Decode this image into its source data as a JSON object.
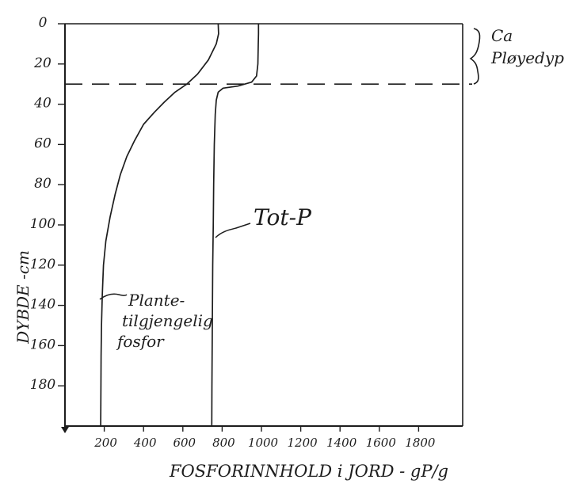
{
  "chart_data": {
    "type": "line",
    "title": "",
    "xlabel": "FOSFORINNHOLD i JORD - gP/g",
    "ylabel": "DYBDE -cm",
    "xlim": [
      0,
      2000
    ],
    "ylim": [
      0,
      200
    ],
    "y_inverted": true,
    "x_ticks": [
      "200",
      "400",
      "600",
      "800",
      "1000",
      "1200",
      "1400",
      "1600",
      "1800"
    ],
    "y_ticks": [
      "0",
      "20",
      "40",
      "60",
      "80",
      "100",
      "120",
      "140",
      "160",
      "180"
    ],
    "grid": false,
    "series": [
      {
        "name": "Plante-tilgjengelig fosfor",
        "x": [
          780,
          782,
          770,
          730,
          675,
          620,
          560,
          505,
          455,
          400,
          355,
          315,
          282,
          255,
          230,
          208,
          196,
          190,
          186,
          184,
          183,
          182
        ],
        "y": [
          0,
          5,
          10,
          18,
          25,
          30,
          34,
          39,
          44,
          50,
          58,
          66,
          75,
          85,
          96,
          108,
          120,
          135,
          150,
          165,
          180,
          200
        ]
      },
      {
        "name": "Tot-P",
        "x": [
          985,
          985,
          984,
          982,
          975,
          950,
          880,
          805,
          780,
          770,
          765,
          760,
          757,
          755,
          752,
          750,
          748,
          747
        ],
        "y": [
          0,
          5,
          10,
          20,
          26,
          29,
          31,
          32,
          34,
          38,
          45,
          60,
          80,
          100,
          120,
          150,
          180,
          200
        ]
      }
    ],
    "reference_line": {
      "y": 30,
      "style": "dashed"
    },
    "annotations": {
      "plow_depth": [
        "Ca",
        "Pløyedyp"
      ],
      "tot_p": "Tot-P",
      "plant": [
        "Plante-",
        "tilgjengelig",
        "fosfor"
      ]
    }
  }
}
